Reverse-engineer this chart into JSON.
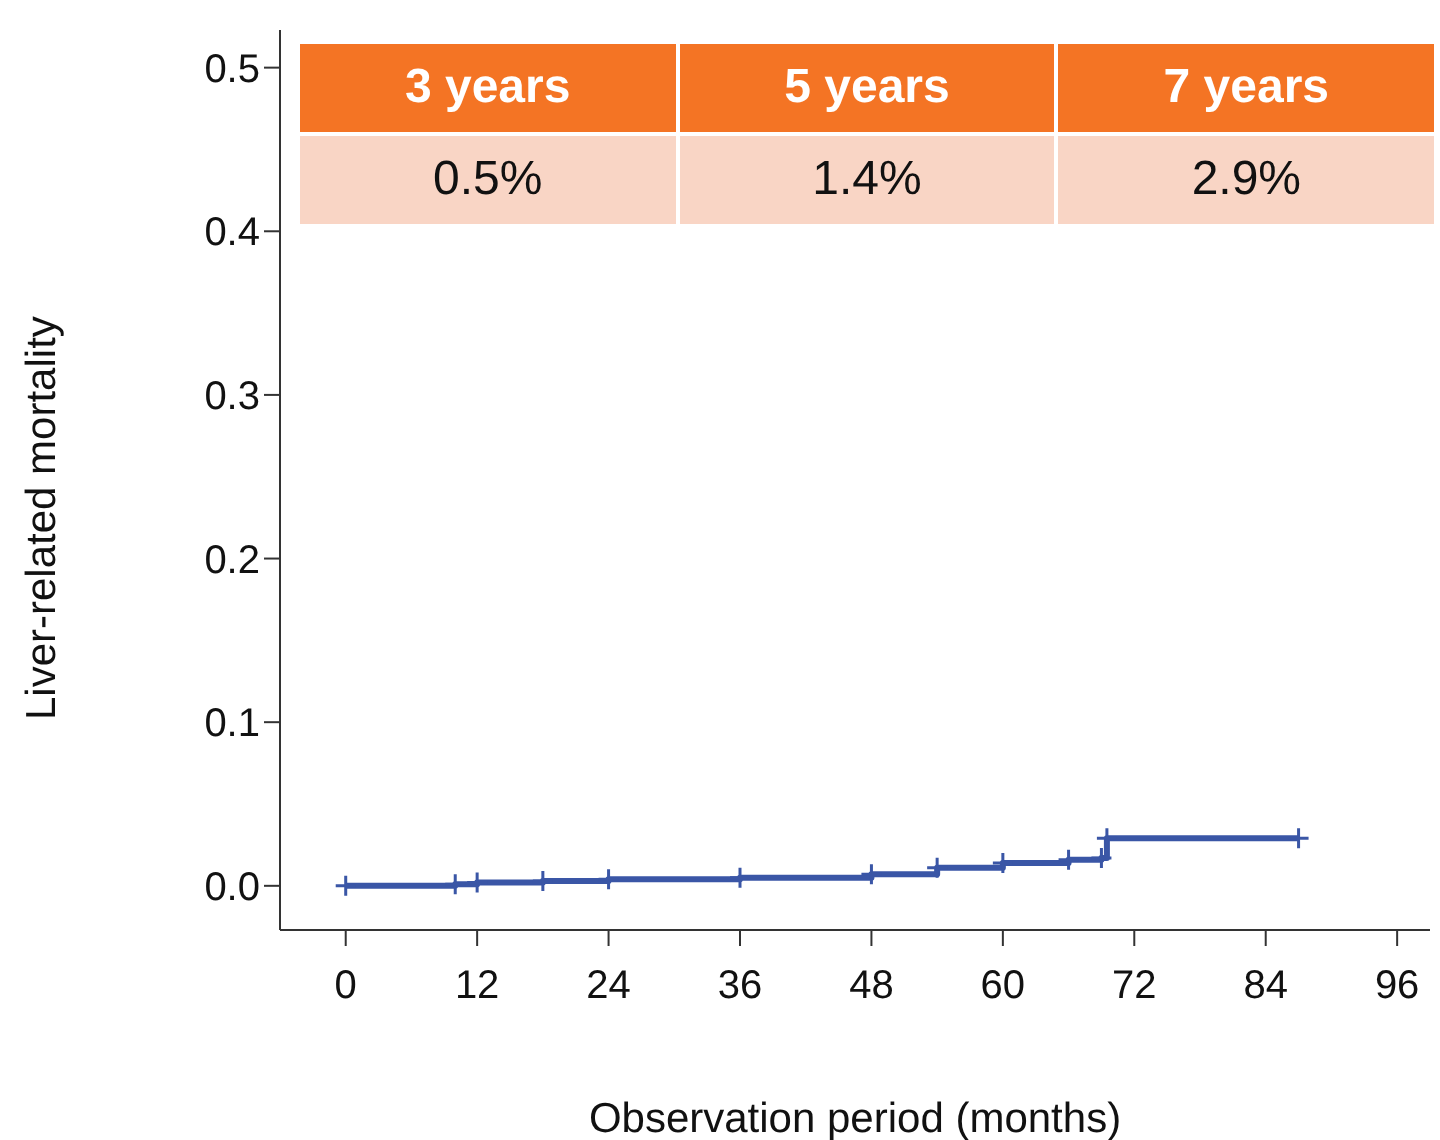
{
  "chart_data": {
    "type": "step",
    "xlabel": "Observation period (months)",
    "ylabel": "Liver-related mortality",
    "x": [
      0,
      10,
      12,
      18,
      24,
      36,
      48,
      54,
      60,
      66,
      69,
      69.5,
      87
    ],
    "series": [
      {
        "color": "#3a56a6",
        "values": [
          0,
          0.001,
          0.002,
          0.003,
          0.004,
          0.005,
          0.007,
          0.011,
          0.014,
          0.016,
          0.017,
          0.029,
          0.029
        ]
      }
    ],
    "xlim": [
      -6,
      99
    ],
    "xticks": [
      0,
      12,
      24,
      36,
      48,
      60,
      72,
      84,
      96
    ],
    "ylim": [
      -0.027,
      0.523
    ],
    "yticks": [
      {
        "value": 0,
        "label": "0.0"
      },
      0.1,
      0.2,
      0.3,
      0.4,
      0.5
    ],
    "marker": "cross",
    "annotations": [
      "3 years",
      "5 years",
      "7 years",
      "0.5%",
      "1.4%",
      "2.9%"
    ]
  }
}
